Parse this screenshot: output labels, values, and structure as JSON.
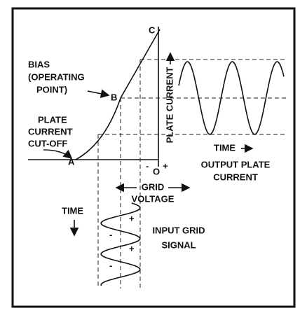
{
  "labels": {
    "c": "C",
    "plate_current_axis": "PLATE CURRENT",
    "bias": [
      "BIAS",
      "(OPERATING",
      "POINT)"
    ],
    "b": "B",
    "cutoff": [
      "PLATE",
      "CURRENT",
      "CUT-OFF"
    ],
    "a": "A",
    "origin_minus": "-",
    "origin": "O",
    "origin_plus": "+",
    "grid_voltage": [
      "GRID",
      "VOLTAGE"
    ],
    "output_time": "TIME",
    "output": [
      "OUTPUT PLATE",
      "CURRENT"
    ],
    "input_time": "TIME",
    "input": [
      "INPUT GRID",
      "SIGNAL"
    ],
    "signal_signs": [
      "+",
      "-",
      "+",
      "-"
    ]
  }
}
